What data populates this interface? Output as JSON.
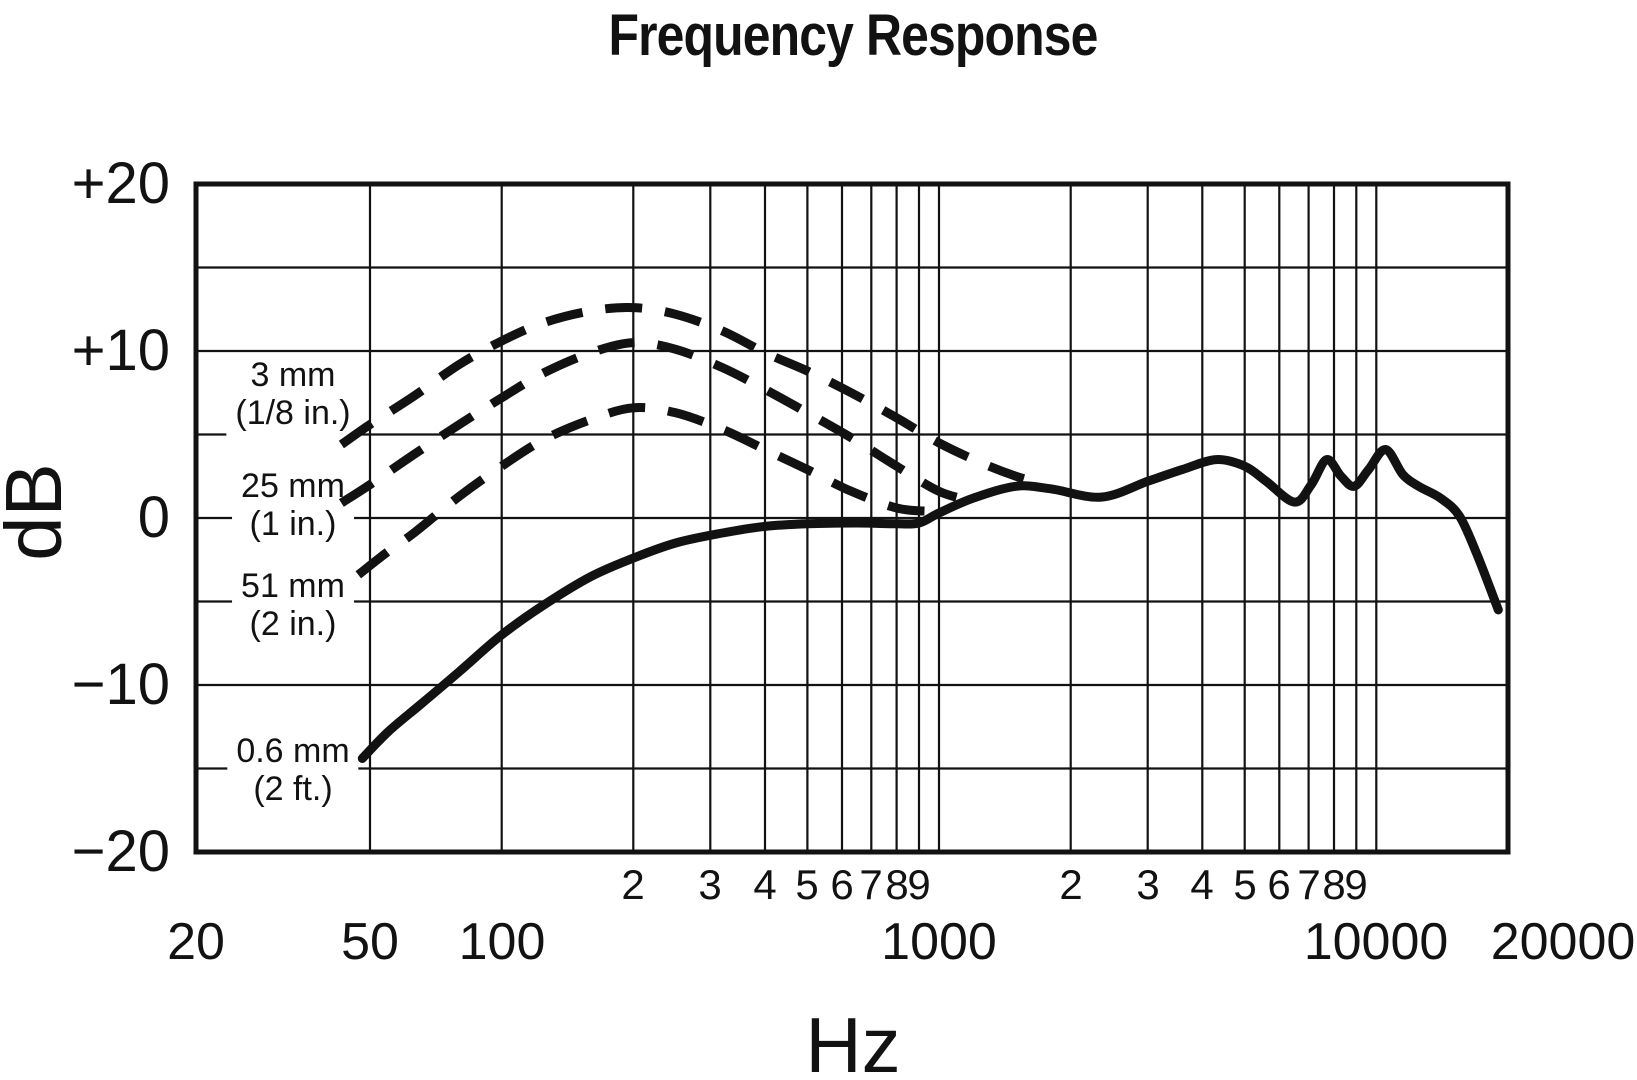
{
  "title": "Frequency Response",
  "colors": {
    "ink": "#121212",
    "background": "#ffffff"
  },
  "axes": {
    "x": {
      "label": "Hz",
      "scale": "log",
      "min": 20,
      "max": 20000,
      "major_ticks": [
        {
          "hz": 20,
          "label": "20"
        },
        {
          "hz": 50,
          "label": "50"
        },
        {
          "hz": 100,
          "label": "100"
        },
        {
          "hz": 1000,
          "label": "1000"
        },
        {
          "hz": 10000,
          "label": "10000"
        },
        {
          "hz": 20000,
          "label": "20000"
        }
      ],
      "minor_tick_labels": [
        {
          "hz": 200,
          "label": "2"
        },
        {
          "hz": 300,
          "label": "3"
        },
        {
          "hz": 400,
          "label": "4"
        },
        {
          "hz": 500,
          "label": "5"
        },
        {
          "hz": 600,
          "label": "6"
        },
        {
          "hz": 700,
          "label": "7"
        },
        {
          "hz": 800,
          "label": "8"
        },
        {
          "hz": 900,
          "label": "9"
        },
        {
          "hz": 2000,
          "label": "2"
        },
        {
          "hz": 3000,
          "label": "3"
        },
        {
          "hz": 4000,
          "label": "4"
        },
        {
          "hz": 5000,
          "label": "5"
        },
        {
          "hz": 6000,
          "label": "6"
        },
        {
          "hz": 7000,
          "label": "7"
        },
        {
          "hz": 8000,
          "label": "8"
        },
        {
          "hz": 9000,
          "label": "9"
        }
      ],
      "gridlines_hz": [
        50,
        100,
        200,
        300,
        400,
        500,
        600,
        700,
        800,
        900,
        1000,
        2000,
        3000,
        4000,
        5000,
        6000,
        7000,
        8000,
        9000,
        10000
      ]
    },
    "y": {
      "label": "dB",
      "min": -20,
      "max": 20,
      "tick_step_db": 5,
      "labeled_ticks": [
        {
          "db": 20,
          "label": "+20"
        },
        {
          "db": 10,
          "label": "+10"
        },
        {
          "db": 0,
          "label": "0"
        },
        {
          "db": -10,
          "label": "−10"
        },
        {
          "db": -20,
          "label": "−20"
        }
      ],
      "gridlines_db": [
        15,
        10,
        5,
        0,
        -5,
        -10,
        -15
      ]
    }
  },
  "curve_labels": [
    {
      "line1": "3 mm",
      "line2": "(1/8 in.)"
    },
    {
      "line1": "25 mm",
      "line2": "(1 in.)"
    },
    {
      "line1": "51 mm",
      "line2": "(2 in.)"
    },
    {
      "line1": "0.6 mm",
      "line2": "(2 ft.)"
    }
  ],
  "chart_data": {
    "type": "line",
    "title": "Frequency Response",
    "xlabel": "Hz",
    "ylabel": "dB",
    "xscale": "log",
    "xlim": [
      20,
      20000
    ],
    "ylim": [
      -20,
      20
    ],
    "grid": true,
    "legend_position": "inline-left",
    "series": [
      {
        "name": "3 mm (1/8 in.)",
        "style": "dashed",
        "points": [
          [
            43,
            4.4
          ],
          [
            50,
            5.6
          ],
          [
            63,
            7.3
          ],
          [
            80,
            9.2
          ],
          [
            100,
            10.6
          ],
          [
            125,
            11.7
          ],
          [
            160,
            12.4
          ],
          [
            200,
            12.6
          ],
          [
            250,
            12.2
          ],
          [
            320,
            11.2
          ],
          [
            400,
            9.9
          ],
          [
            500,
            8.8
          ],
          [
            630,
            7.5
          ],
          [
            800,
            6.0
          ],
          [
            1000,
            4.5
          ],
          [
            1250,
            3.3
          ],
          [
            1500,
            2.5
          ],
          [
            1700,
            2.1
          ]
        ]
      },
      {
        "name": "25 mm (1 in.)",
        "style": "dashed",
        "points": [
          [
            43,
            0.9
          ],
          [
            50,
            2.0
          ],
          [
            63,
            3.8
          ],
          [
            80,
            5.6
          ],
          [
            100,
            7.2
          ],
          [
            125,
            8.7
          ],
          [
            160,
            9.9
          ],
          [
            200,
            10.5
          ],
          [
            250,
            10.1
          ],
          [
            320,
            9.0
          ],
          [
            400,
            7.7
          ],
          [
            500,
            6.3
          ],
          [
            630,
            4.8
          ],
          [
            800,
            3.1
          ],
          [
            1000,
            1.6
          ],
          [
            1200,
            1.0
          ]
        ]
      },
      {
        "name": "51 mm (2 in.)",
        "style": "dashed",
        "points": [
          [
            47,
            -3.4
          ],
          [
            55,
            -2.0
          ],
          [
            63,
            -0.9
          ],
          [
            80,
            1.3
          ],
          [
            100,
            3.1
          ],
          [
            125,
            4.7
          ],
          [
            160,
            5.9
          ],
          [
            200,
            6.6
          ],
          [
            250,
            6.3
          ],
          [
            320,
            5.3
          ],
          [
            400,
            4.1
          ],
          [
            500,
            2.9
          ],
          [
            630,
            1.6
          ],
          [
            800,
            0.6
          ],
          [
            950,
            0.4
          ]
        ]
      },
      {
        "name": "0.6 mm (2 ft.)",
        "style": "solid",
        "points": [
          [
            48,
            -14.4
          ],
          [
            55,
            -12.8
          ],
          [
            65,
            -11.2
          ],
          [
            80,
            -9.2
          ],
          [
            100,
            -7.0
          ],
          [
            125,
            -5.2
          ],
          [
            160,
            -3.5
          ],
          [
            200,
            -2.4
          ],
          [
            250,
            -1.5
          ],
          [
            320,
            -0.9
          ],
          [
            400,
            -0.5
          ],
          [
            500,
            -0.35
          ],
          [
            650,
            -0.3
          ],
          [
            800,
            -0.35
          ],
          [
            900,
            -0.3
          ],
          [
            1000,
            0.3
          ],
          [
            1200,
            1.2
          ],
          [
            1500,
            1.9
          ],
          [
            1800,
            1.75
          ],
          [
            2350,
            1.25
          ],
          [
            3000,
            2.2
          ],
          [
            3600,
            2.9
          ],
          [
            4300,
            3.5
          ],
          [
            5000,
            3.1
          ],
          [
            5600,
            2.2
          ],
          [
            6500,
            0.95
          ],
          [
            7100,
            2.0
          ],
          [
            7700,
            3.5
          ],
          [
            8300,
            2.5
          ],
          [
            8900,
            1.9
          ],
          [
            9600,
            2.9
          ],
          [
            10500,
            4.1
          ],
          [
            11500,
            2.6
          ],
          [
            12500,
            1.9
          ],
          [
            14000,
            1.2
          ],
          [
            15500,
            0.1
          ],
          [
            17000,
            -2.2
          ],
          [
            19000,
            -5.5
          ]
        ]
      }
    ]
  }
}
